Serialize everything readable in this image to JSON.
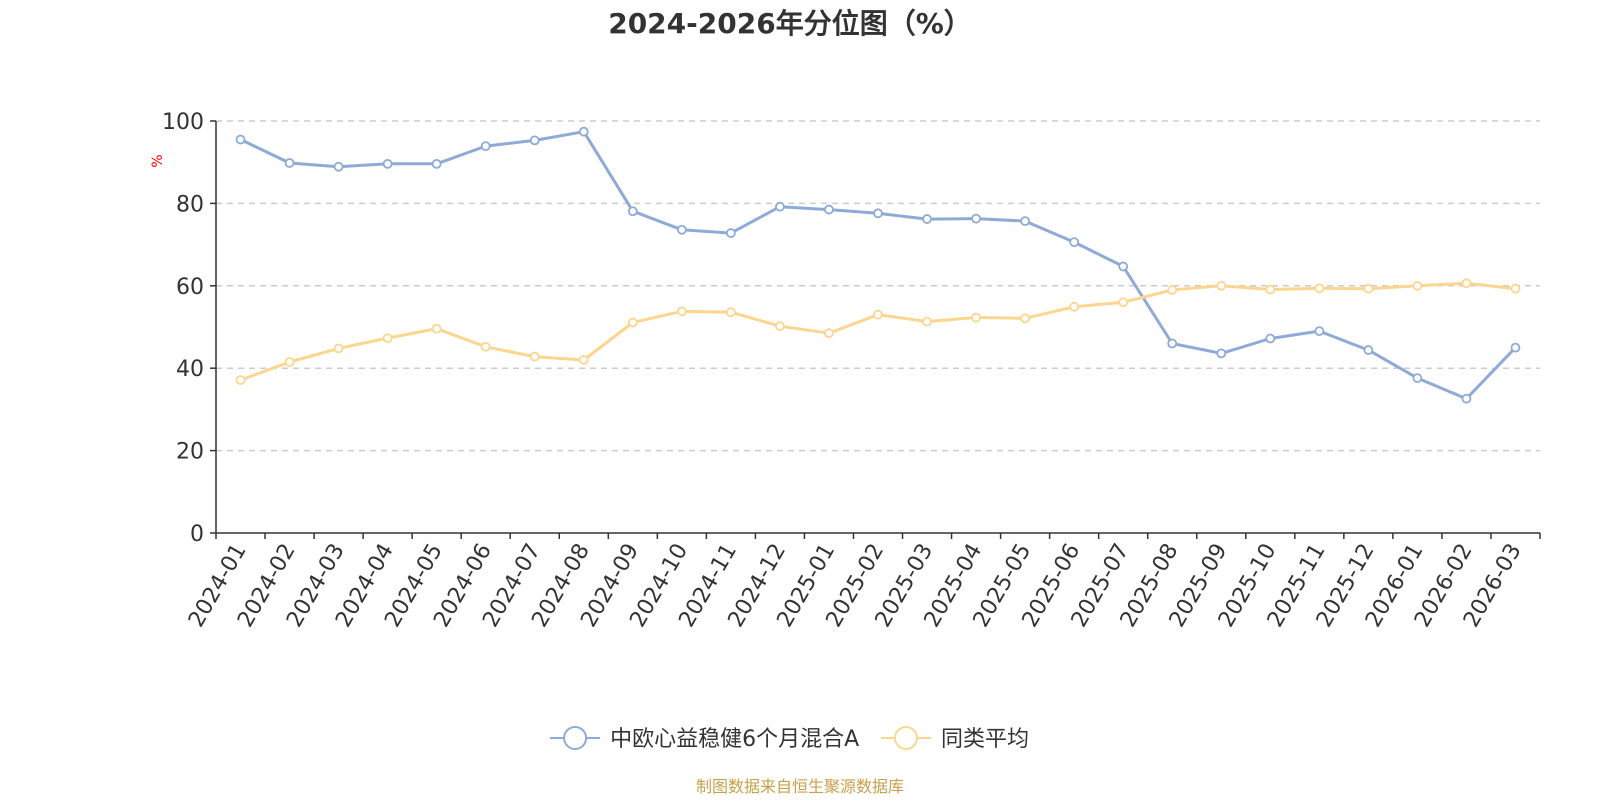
{
  "chart_data": {
    "type": "line",
    "title": "2024-2026年分位图（%）",
    "ylabel": "%",
    "xlabel": "",
    "ylim": [
      0,
      100
    ],
    "yticks": [
      0,
      20,
      40,
      60,
      80,
      100
    ],
    "grid": true,
    "legend_position": "bottom",
    "categories": [
      "2024-01",
      "2024-02",
      "2024-03",
      "2024-04",
      "2024-05",
      "2024-06",
      "2024-07",
      "2024-08",
      "2024-09",
      "2024-10",
      "2024-11",
      "2024-12",
      "2025-01",
      "2025-02",
      "2025-03",
      "2025-04",
      "2025-05",
      "2025-06",
      "2025-07",
      "2025-08",
      "2025-09",
      "2025-10",
      "2025-11",
      "2025-12",
      "2026-01",
      "2026-02",
      "2026-03"
    ],
    "series": [
      {
        "name": "中欧心益稳健6个月混合A",
        "color": "#8eabd7",
        "values": [
          95.5,
          89.8,
          88.9,
          89.6,
          89.6,
          93.9,
          95.3,
          97.4,
          78.1,
          73.6,
          72.8,
          79.2,
          78.5,
          77.6,
          76.2,
          76.3,
          75.7,
          70.6,
          64.7,
          46.0,
          43.6,
          47.2,
          49.0,
          44.4,
          37.6,
          32.6,
          45.0
        ]
      },
      {
        "name": "同类平均",
        "color": "#fcd68f",
        "values": [
          37.1,
          41.5,
          44.8,
          47.3,
          49.6,
          45.2,
          42.8,
          42.0,
          51.1,
          53.8,
          53.6,
          50.2,
          48.5,
          53.0,
          51.3,
          52.3,
          52.1,
          54.9,
          56.0,
          59.0,
          60.0,
          59.1,
          59.4,
          59.3,
          60.0,
          60.6,
          59.3
        ]
      }
    ],
    "source": "制图数据来自恒生聚源数据库"
  },
  "colors": {
    "axis": "#333333",
    "grid": "#cccccc",
    "title": "#333333",
    "ylabel": "#ff0000",
    "source": "#c8a14a"
  }
}
